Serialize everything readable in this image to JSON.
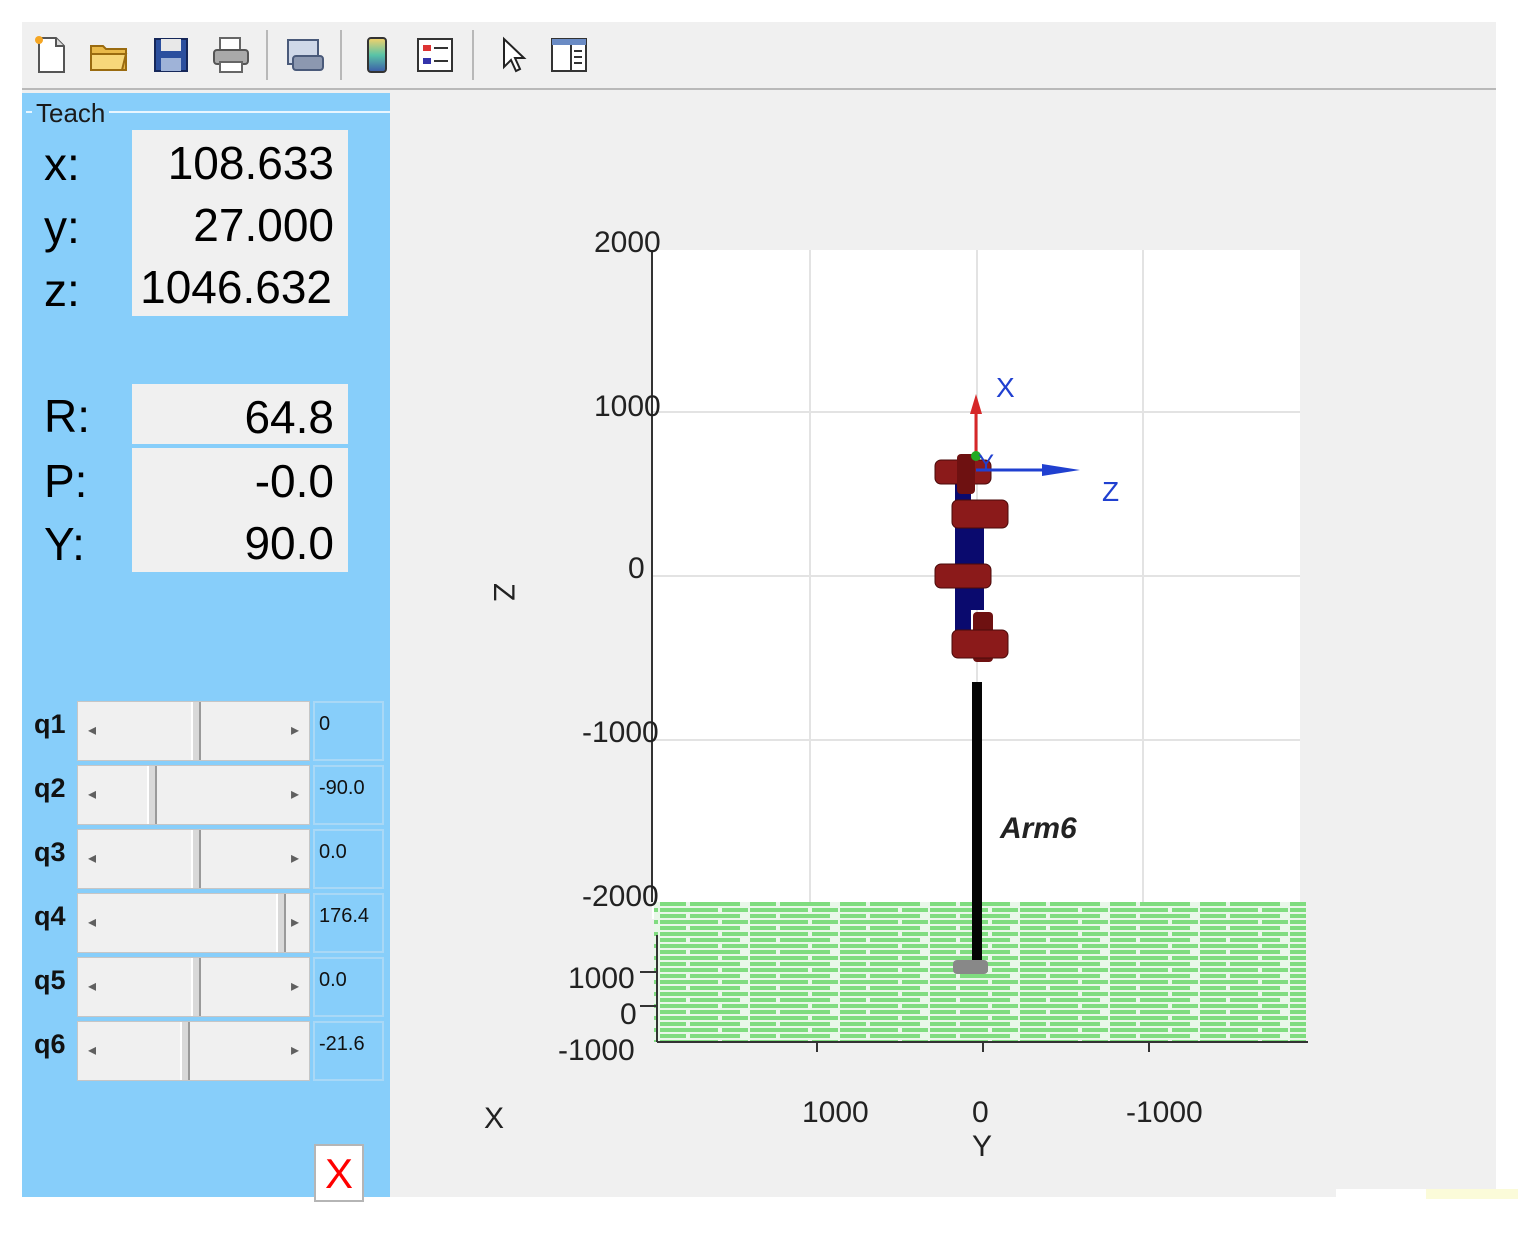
{
  "toolbar": {
    "icons": [
      "new-file-icon",
      "open-folder-icon",
      "save-icon",
      "print-icon",
      "print-preview-icon",
      "colorbar-icon",
      "legend-icon",
      "pointer-icon",
      "property-editor-icon"
    ]
  },
  "teach": {
    "title": "Teach",
    "position": [
      {
        "label": "x:",
        "value": "108.633"
      },
      {
        "label": "y:",
        "value": "27.000"
      },
      {
        "label": "z:",
        "value": "1046.632"
      }
    ],
    "orientation": [
      {
        "label": "R:",
        "value": "64.8"
      },
      {
        "label": "P:",
        "value": "-0.0"
      },
      {
        "label": "Y:",
        "value": "90.0"
      }
    ],
    "joints": [
      {
        "label": "q1",
        "value": "0",
        "thumb_fraction": 0.5
      },
      {
        "label": "q2",
        "value": "-90.0",
        "thumb_fraction": 0.25
      },
      {
        "label": "q3",
        "value": "0.0",
        "thumb_fraction": 0.5
      },
      {
        "label": "q4",
        "value": "176.4",
        "thumb_fraction": 0.99
      },
      {
        "label": "q5",
        "value": "0.0",
        "thumb_fraction": 0.5
      },
      {
        "label": "q6",
        "value": "-21.6",
        "thumb_fraction": 0.44
      }
    ],
    "close_label": "X",
    "close_color": "#ff0000",
    "panel_color": "#87cefa"
  },
  "plot": {
    "robot_name": "Arm6",
    "z_label": "Z",
    "x_label": "X",
    "y_label": "Y",
    "z_ticks": [
      "2000",
      "1000",
      "0",
      "-1000",
      "-2000"
    ],
    "x_ticks": [
      "1000",
      "0",
      "-1000"
    ],
    "y_ticks": [
      "1000",
      "0",
      "-1000"
    ],
    "frame_labels": {
      "x": "X",
      "y": "Y",
      "z": "Z"
    },
    "floor_color": "#7fdc7f",
    "link_color": "#0a0a6e",
    "joint_color": "#8b1a1a"
  }
}
